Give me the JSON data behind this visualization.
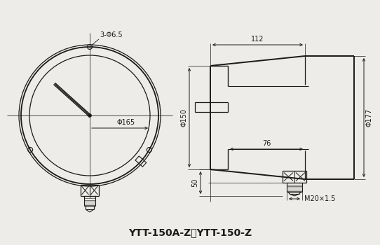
{
  "bg_color": "#eeece8",
  "line_color": "#1a1a1a",
  "title": "YTT-150A-Z，YTT-150-Z",
  "title_fontsize": 10,
  "annotations": {
    "hole_label": "3-Φ6.5",
    "inner_dia": "Φ165",
    "dia150": "Φ150",
    "dia177": "Φ177",
    "dim_112": "112",
    "dim_76": "76",
    "dim_50": "50",
    "thread": "M20×1.5"
  }
}
